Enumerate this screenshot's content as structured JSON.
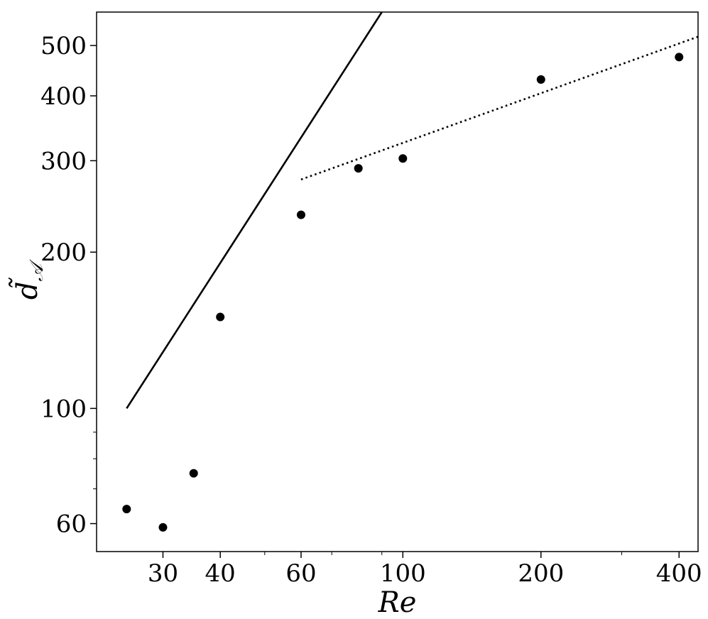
{
  "chart_data": {
    "type": "scatter",
    "xlabel": "Re",
    "ylabel": "d̃",
    "ylabel_subscript": "𝒜",
    "xscale": "log",
    "yscale": "log",
    "xlim": [
      21.5,
      440
    ],
    "ylim": [
      53,
      580
    ],
    "grid": false,
    "x_ticks": [
      30,
      40,
      60,
      100,
      200,
      400
    ],
    "x_tick_labels": [
      "30",
      "40",
      "60",
      "100",
      "200",
      "400"
    ],
    "y_ticks": [
      60,
      100,
      200,
      300,
      400,
      500
    ],
    "y_tick_labels": [
      "60",
      "100",
      "200",
      "300",
      "400",
      "500"
    ],
    "series": [
      {
        "kind": "points",
        "x": [
          25,
          30,
          35,
          40,
          60,
          80,
          100,
          200,
          400
        ],
        "y": [
          64,
          59,
          75,
          150,
          236,
          290,
          303,
          430,
          475
        ]
      },
      {
        "kind": "line",
        "style": "solid",
        "x": [
          25,
          90
        ],
        "y": [
          100,
          580
        ]
      },
      {
        "kind": "line",
        "style": "dotted",
        "x": [
          60,
          440
        ],
        "y": [
          276,
          520
        ]
      }
    ]
  }
}
